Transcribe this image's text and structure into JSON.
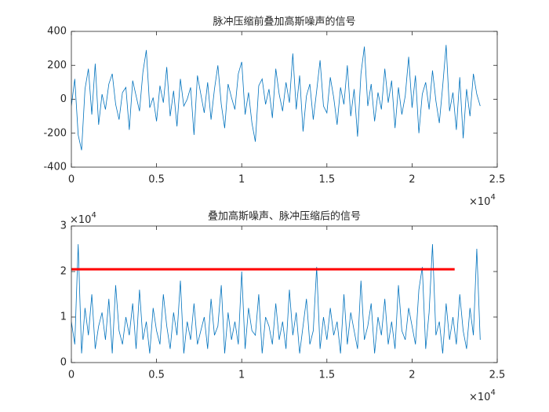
{
  "chart_data": [
    {
      "type": "line",
      "title": "脉冲压缩前叠加高斯噪声的信号",
      "x": [
        0,
        200,
        400,
        600,
        800,
        1000,
        1200,
        1400,
        1600,
        1800,
        2000,
        2200,
        2400,
        2600,
        2800,
        3000,
        3200,
        3400,
        3600,
        3800,
        4000,
        4200,
        4400,
        4600,
        4800,
        5000,
        5200,
        5400,
        5600,
        5800,
        6000,
        6200,
        6400,
        6600,
        6800,
        7000,
        7200,
        7400,
        7600,
        7800,
        8000,
        8200,
        8400,
        8600,
        8800,
        9000,
        9200,
        9400,
        9600,
        9800,
        10000,
        10200,
        10400,
        10600,
        10800,
        11000,
        11200,
        11400,
        11600,
        11800,
        12000,
        12200,
        12400,
        12600,
        12800,
        13000,
        13200,
        13400,
        13600,
        13800,
        14000,
        14200,
        14400,
        14600,
        14800,
        15000,
        15200,
        15400,
        15600,
        15800,
        16000,
        16200,
        16400,
        16600,
        16800,
        17000,
        17200,
        17400,
        17600,
        17800,
        18000,
        18200,
        18400,
        18600,
        18800,
        19000,
        19200,
        19400,
        19600,
        19800,
        20000,
        20200,
        20400,
        20600,
        20800,
        21000,
        21200,
        21400,
        21600,
        21800,
        22000,
        22200,
        22400,
        22600,
        22800,
        23000,
        23200,
        23400,
        23600,
        23800,
        24000
      ],
      "series": [
        {
          "color": "#0072bd",
          "values": [
            -40,
            120,
            -210,
            -300,
            60,
            180,
            -90,
            210,
            -150,
            30,
            -60,
            90,
            150,
            -30,
            -120,
            40,
            70,
            -180,
            110,
            20,
            -70,
            160,
            290,
            -50,
            10,
            -130,
            80,
            -20,
            190,
            -100,
            50,
            -160,
            120,
            -40,
            0,
            70,
            -210,
            140,
            30,
            -80,
            100,
            -120,
            60,
            200,
            -30,
            -170,
            90,
            10,
            -60,
            150,
            220,
            -90,
            40,
            -140,
            -250,
            80,
            120,
            -30,
            60,
            -110,
            180,
            30,
            -70,
            100,
            -20,
            270,
            -60,
            140,
            -190,
            20,
            90,
            -120,
            50,
            230,
            -40,
            -80,
            130,
            10,
            -150,
            70,
            -30,
            200,
            -100,
            60,
            -220,
            150,
            310,
            -40,
            90,
            -130,
            40,
            -60,
            180,
            -20,
            110,
            -170,
            70,
            -90,
            20,
            250,
            -50,
            140,
            -200,
            30,
            100,
            -60,
            170,
            -10,
            -140,
            80,
            320,
            -70,
            40,
            -180,
            130,
            -230,
            60,
            -100,
            150,
            30,
            -40
          ]
        }
      ],
      "xlim": [
        0,
        25000
      ],
      "xticks": [
        0,
        {
          "value": 5000,
          "label": "0.5"
        },
        {
          "value": 10000,
          "label": "1"
        },
        {
          "value": 15000,
          "label": "1.5"
        },
        {
          "value": 20000,
          "label": "2"
        },
        {
          "value": 25000,
          "label": "2.5"
        }
      ],
      "x_exponent": {
        "base": "×10",
        "power": "4"
      },
      "ylim": [
        -400,
        400
      ],
      "yticks": [
        -400,
        -200,
        0,
        200,
        400
      ]
    },
    {
      "type": "line",
      "title": "叠加高斯噪声、脉冲压缩后的信号",
      "x": [
        0,
        200,
        400,
        600,
        800,
        1000,
        1200,
        1400,
        1600,
        1800,
        2000,
        2200,
        2400,
        2600,
        2800,
        3000,
        3200,
        3400,
        3600,
        3800,
        4000,
        4200,
        4400,
        4600,
        4800,
        5000,
        5200,
        5400,
        5600,
        5800,
        6000,
        6200,
        6400,
        6600,
        6800,
        7000,
        7200,
        7400,
        7600,
        7800,
        8000,
        8200,
        8400,
        8600,
        8800,
        9000,
        9200,
        9400,
        9600,
        9800,
        10000,
        10200,
        10400,
        10600,
        10800,
        11000,
        11200,
        11400,
        11600,
        11800,
        12000,
        12200,
        12400,
        12600,
        12800,
        13000,
        13200,
        13400,
        13600,
        13800,
        14000,
        14200,
        14400,
        14600,
        14800,
        15000,
        15200,
        15400,
        15600,
        15800,
        16000,
        16200,
        16400,
        16600,
        16800,
        17000,
        17200,
        17400,
        17600,
        17800,
        18000,
        18200,
        18400,
        18600,
        18800,
        19000,
        19200,
        19400,
        19600,
        19800,
        20000,
        20200,
        20400,
        20600,
        20800,
        21000,
        21200,
        21400,
        21600,
        21800,
        22000,
        22200,
        22400,
        22600,
        22800,
        23000,
        23200,
        23400,
        23600,
        23800,
        24000
      ],
      "series": [
        {
          "color": "#0072bd",
          "values": [
            9000,
            4000,
            26000,
            2000,
            12000,
            6000,
            15000,
            3000,
            8000,
            11000,
            5000,
            14000,
            2000,
            17000,
            7000,
            4000,
            10000,
            6000,
            13000,
            3000,
            16000,
            5000,
            9000,
            2000,
            12000,
            7000,
            4000,
            15000,
            8000,
            3000,
            11000,
            6000,
            18000,
            2000,
            9000,
            5000,
            13000,
            4000,
            7000,
            10000,
            3000,
            14000,
            6000,
            8000,
            17000,
            2000,
            11000,
            5000,
            9000,
            4000,
            20000,
            3000,
            12000,
            7000,
            6000,
            15000,
            2000,
            10000,
            8000,
            4000,
            13000,
            5000,
            9000,
            3000,
            16000,
            6000,
            11000,
            2000,
            8000,
            14000,
            4000,
            7000,
            21000,
            3000,
            10000,
            5000,
            12000,
            6000,
            9000,
            2000,
            15000,
            4000,
            11000,
            7000,
            3000,
            18000,
            5000,
            8000,
            13000,
            2000,
            10000,
            6000,
            14000,
            4000,
            9000,
            3000,
            17000,
            7000,
            5000,
            12000,
            8000,
            4000,
            16000,
            21000,
            3000,
            11000,
            26000,
            6000,
            9000,
            2000,
            13000,
            5000,
            10000,
            4000,
            15000,
            7000,
            3000,
            12000,
            6000,
            25000,
            5000
          ]
        }
      ],
      "threshold": {
        "x": [
          0,
          22500
        ],
        "value": 20500,
        "color": "#ff0000"
      },
      "xlim": [
        0,
        25000
      ],
      "xticks": [
        0,
        {
          "value": 5000,
          "label": "0.5"
        },
        {
          "value": 10000,
          "label": "1"
        },
        {
          "value": 15000,
          "label": "1.5"
        },
        {
          "value": 20000,
          "label": "2"
        },
        {
          "value": 25000,
          "label": "2.5"
        }
      ],
      "x_exponent": {
        "base": "×10",
        "power": "4"
      },
      "ylim": [
        0,
        30000
      ],
      "yticks": [
        0,
        {
          "value": 10000,
          "label": "1"
        },
        {
          "value": 20000,
          "label": "2"
        },
        {
          "value": 30000,
          "label": "3"
        }
      ],
      "y_exponent": {
        "base": "×10",
        "power": "4"
      }
    }
  ]
}
